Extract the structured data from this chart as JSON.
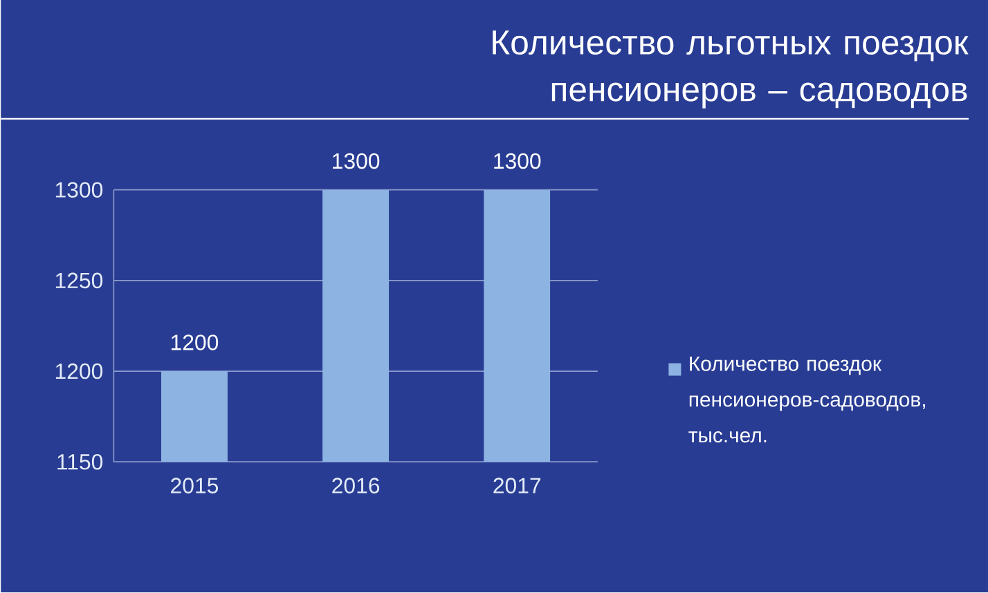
{
  "chart_data": {
    "type": "bar",
    "title": "Количество льготных поездок пенсионеров – садоводов",
    "categories": [
      "2015",
      "2016",
      "2017"
    ],
    "series": [
      {
        "name": "Количество поездок пенсионеров-садоводов, тыс.чел.",
        "color": "#8db3e2",
        "values": [
          1200,
          1300,
          1300
        ]
      }
    ],
    "ylim": [
      1150,
      1300
    ],
    "yticks": [
      1150,
      1200,
      1250,
      1300
    ],
    "grid": "y",
    "legend": "right",
    "data_labels": true
  }
}
